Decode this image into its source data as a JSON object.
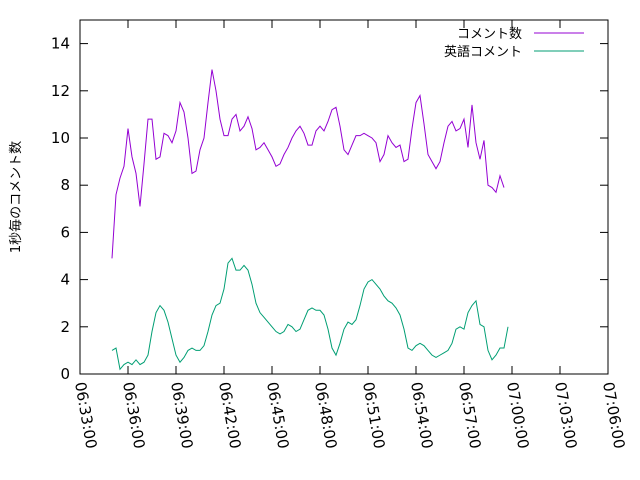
{
  "chart_data": {
    "type": "line",
    "ylabel": "1秒毎のコメント数",
    "xlabel": "",
    "ylim": [
      0,
      15
    ],
    "xlim": [
      "06:33:00",
      "07:06:00"
    ],
    "yticks": [
      0,
      2,
      4,
      6,
      8,
      10,
      12,
      14
    ],
    "xticks": [
      "06:33:00",
      "06:36:00",
      "06:39:00",
      "06:42:00",
      "06:45:00",
      "06:48:00",
      "06:51:00",
      "06:54:00",
      "06:57:00",
      "07:00:00",
      "07:03:00",
      "07:06:00"
    ],
    "grid": false,
    "legend_position": "top-right",
    "series": [
      {
        "name": "コメント数",
        "color": "#9400d3",
        "points": [
          [
            "06:35:00",
            4.9
          ],
          [
            "06:35:15",
            7.6
          ],
          [
            "06:35:30",
            8.3
          ],
          [
            "06:35:45",
            8.8
          ],
          [
            "06:36:00",
            10.4
          ],
          [
            "06:36:15",
            9.2
          ],
          [
            "06:36:30",
            8.5
          ],
          [
            "06:36:45",
            7.1
          ],
          [
            "06:37:00",
            8.9
          ],
          [
            "06:37:15",
            10.8
          ],
          [
            "06:37:30",
            10.8
          ],
          [
            "06:37:45",
            9.1
          ],
          [
            "06:38:00",
            9.2
          ],
          [
            "06:38:15",
            10.2
          ],
          [
            "06:38:30",
            10.1
          ],
          [
            "06:38:45",
            9.8
          ],
          [
            "06:39:00",
            10.3
          ],
          [
            "06:39:15",
            11.5
          ],
          [
            "06:39:30",
            11.1
          ],
          [
            "06:39:45",
            10.0
          ],
          [
            "06:40:00",
            8.5
          ],
          [
            "06:40:15",
            8.6
          ],
          [
            "06:40:30",
            9.5
          ],
          [
            "06:40:45",
            10.0
          ],
          [
            "06:41:00",
            11.5
          ],
          [
            "06:41:15",
            12.9
          ],
          [
            "06:41:30",
            12.0
          ],
          [
            "06:41:45",
            10.8
          ],
          [
            "06:42:00",
            10.1
          ],
          [
            "06:42:15",
            10.1
          ],
          [
            "06:42:30",
            10.8
          ],
          [
            "06:42:45",
            11.0
          ],
          [
            "06:43:00",
            10.3
          ],
          [
            "06:43:15",
            10.5
          ],
          [
            "06:43:30",
            10.9
          ],
          [
            "06:43:45",
            10.4
          ],
          [
            "06:44:00",
            9.5
          ],
          [
            "06:44:15",
            9.6
          ],
          [
            "06:44:30",
            9.8
          ],
          [
            "06:44:45",
            9.5
          ],
          [
            "06:45:00",
            9.2
          ],
          [
            "06:45:15",
            8.8
          ],
          [
            "06:45:30",
            8.9
          ],
          [
            "06:45:45",
            9.3
          ],
          [
            "06:46:00",
            9.6
          ],
          [
            "06:46:15",
            10.0
          ],
          [
            "06:46:30",
            10.3
          ],
          [
            "06:46:45",
            10.5
          ],
          [
            "06:47:00",
            10.2
          ],
          [
            "06:47:15",
            9.7
          ],
          [
            "06:47:30",
            9.7
          ],
          [
            "06:47:45",
            10.3
          ],
          [
            "06:48:00",
            10.5
          ],
          [
            "06:48:15",
            10.3
          ],
          [
            "06:48:30",
            10.7
          ],
          [
            "06:48:45",
            11.2
          ],
          [
            "06:49:00",
            11.3
          ],
          [
            "06:49:15",
            10.5
          ],
          [
            "06:49:30",
            9.5
          ],
          [
            "06:49:45",
            9.3
          ],
          [
            "06:50:00",
            9.7
          ],
          [
            "06:50:15",
            10.1
          ],
          [
            "06:50:30",
            10.1
          ],
          [
            "06:50:45",
            10.2
          ],
          [
            "06:51:00",
            10.1
          ],
          [
            "06:51:15",
            10.0
          ],
          [
            "06:51:30",
            9.8
          ],
          [
            "06:51:45",
            9.0
          ],
          [
            "06:52:00",
            9.3
          ],
          [
            "06:52:15",
            10.1
          ],
          [
            "06:52:30",
            9.8
          ],
          [
            "06:52:45",
            9.6
          ],
          [
            "06:53:00",
            9.7
          ],
          [
            "06:53:15",
            9.0
          ],
          [
            "06:53:30",
            9.1
          ],
          [
            "06:53:45",
            10.4
          ],
          [
            "06:54:00",
            11.5
          ],
          [
            "06:54:15",
            11.8
          ],
          [
            "06:54:30",
            10.6
          ],
          [
            "06:54:45",
            9.3
          ],
          [
            "06:55:00",
            9.0
          ],
          [
            "06:55:15",
            8.7
          ],
          [
            "06:55:30",
            9.0
          ],
          [
            "06:55:45",
            9.8
          ],
          [
            "06:56:00",
            10.5
          ],
          [
            "06:56:15",
            10.7
          ],
          [
            "06:56:30",
            10.3
          ],
          [
            "06:56:45",
            10.4
          ],
          [
            "06:57:00",
            10.8
          ],
          [
            "06:57:15",
            9.6
          ],
          [
            "06:57:30",
            11.4
          ],
          [
            "06:57:45",
            9.8
          ],
          [
            "06:58:00",
            9.1
          ],
          [
            "06:58:15",
            9.9
          ],
          [
            "06:58:30",
            8.0
          ],
          [
            "06:58:45",
            7.9
          ],
          [
            "06:59:00",
            7.7
          ],
          [
            "06:59:15",
            8.4
          ],
          [
            "06:59:30",
            7.9
          ]
        ]
      },
      {
        "name": "英語コメント",
        "color": "#009e73",
        "points": [
          [
            "06:35:00",
            1.0
          ],
          [
            "06:35:15",
            1.1
          ],
          [
            "06:35:30",
            0.2
          ],
          [
            "06:35:45",
            0.4
          ],
          [
            "06:36:00",
            0.5
          ],
          [
            "06:36:15",
            0.4
          ],
          [
            "06:36:30",
            0.6
          ],
          [
            "06:36:45",
            0.4
          ],
          [
            "06:37:00",
            0.5
          ],
          [
            "06:37:15",
            0.8
          ],
          [
            "06:37:30",
            1.8
          ],
          [
            "06:37:45",
            2.6
          ],
          [
            "06:38:00",
            2.9
          ],
          [
            "06:38:15",
            2.7
          ],
          [
            "06:38:30",
            2.2
          ],
          [
            "06:38:45",
            1.5
          ],
          [
            "06:39:00",
            0.8
          ],
          [
            "06:39:15",
            0.5
          ],
          [
            "06:39:30",
            0.7
          ],
          [
            "06:39:45",
            1.0
          ],
          [
            "06:40:00",
            1.1
          ],
          [
            "06:40:15",
            1.0
          ],
          [
            "06:40:30",
            1.0
          ],
          [
            "06:40:45",
            1.2
          ],
          [
            "06:41:00",
            1.8
          ],
          [
            "06:41:15",
            2.5
          ],
          [
            "06:41:30",
            2.9
          ],
          [
            "06:41:45",
            3.0
          ],
          [
            "06:42:00",
            3.6
          ],
          [
            "06:42:15",
            4.7
          ],
          [
            "06:42:30",
            4.9
          ],
          [
            "06:42:45",
            4.4
          ],
          [
            "06:43:00",
            4.4
          ],
          [
            "06:43:15",
            4.6
          ],
          [
            "06:43:30",
            4.4
          ],
          [
            "06:43:45",
            3.8
          ],
          [
            "06:44:00",
            3.0
          ],
          [
            "06:44:15",
            2.6
          ],
          [
            "06:44:30",
            2.4
          ],
          [
            "06:44:45",
            2.2
          ],
          [
            "06:45:00",
            2.0
          ],
          [
            "06:45:15",
            1.8
          ],
          [
            "06:45:30",
            1.7
          ],
          [
            "06:45:45",
            1.8
          ],
          [
            "06:46:00",
            2.1
          ],
          [
            "06:46:15",
            2.0
          ],
          [
            "06:46:30",
            1.8
          ],
          [
            "06:46:45",
            1.9
          ],
          [
            "06:47:00",
            2.3
          ],
          [
            "06:47:15",
            2.7
          ],
          [
            "06:47:30",
            2.8
          ],
          [
            "06:47:45",
            2.7
          ],
          [
            "06:48:00",
            2.7
          ],
          [
            "06:48:15",
            2.5
          ],
          [
            "06:48:30",
            1.9
          ],
          [
            "06:48:45",
            1.1
          ],
          [
            "06:49:00",
            0.8
          ],
          [
            "06:49:15",
            1.3
          ],
          [
            "06:49:30",
            1.9
          ],
          [
            "06:49:45",
            2.2
          ],
          [
            "06:50:00",
            2.1
          ],
          [
            "06:50:15",
            2.3
          ],
          [
            "06:50:30",
            2.9
          ],
          [
            "06:50:45",
            3.6
          ],
          [
            "06:51:00",
            3.9
          ],
          [
            "06:51:15",
            4.0
          ],
          [
            "06:51:30",
            3.8
          ],
          [
            "06:51:45",
            3.6
          ],
          [
            "06:52:00",
            3.3
          ],
          [
            "06:52:15",
            3.1
          ],
          [
            "06:52:30",
            3.0
          ],
          [
            "06:52:45",
            2.8
          ],
          [
            "06:53:00",
            2.5
          ],
          [
            "06:53:15",
            1.9
          ],
          [
            "06:53:30",
            1.1
          ],
          [
            "06:53:45",
            1.0
          ],
          [
            "06:54:00",
            1.2
          ],
          [
            "06:54:15",
            1.3
          ],
          [
            "06:54:30",
            1.2
          ],
          [
            "06:54:45",
            1.0
          ],
          [
            "06:55:00",
            0.8
          ],
          [
            "06:55:15",
            0.7
          ],
          [
            "06:55:30",
            0.8
          ],
          [
            "06:55:45",
            0.9
          ],
          [
            "06:56:00",
            1.0
          ],
          [
            "06:56:15",
            1.3
          ],
          [
            "06:56:30",
            1.9
          ],
          [
            "06:56:45",
            2.0
          ],
          [
            "06:57:00",
            1.9
          ],
          [
            "06:57:15",
            2.6
          ],
          [
            "06:57:30",
            2.9
          ],
          [
            "06:57:45",
            3.1
          ],
          [
            "06:58:00",
            2.1
          ],
          [
            "06:58:15",
            2.0
          ],
          [
            "06:58:30",
            1.0
          ],
          [
            "06:58:45",
            0.6
          ],
          [
            "06:59:00",
            0.8
          ],
          [
            "06:59:15",
            1.1
          ],
          [
            "06:59:30",
            1.1
          ],
          [
            "06:59:45",
            2.0
          ]
        ]
      }
    ]
  }
}
